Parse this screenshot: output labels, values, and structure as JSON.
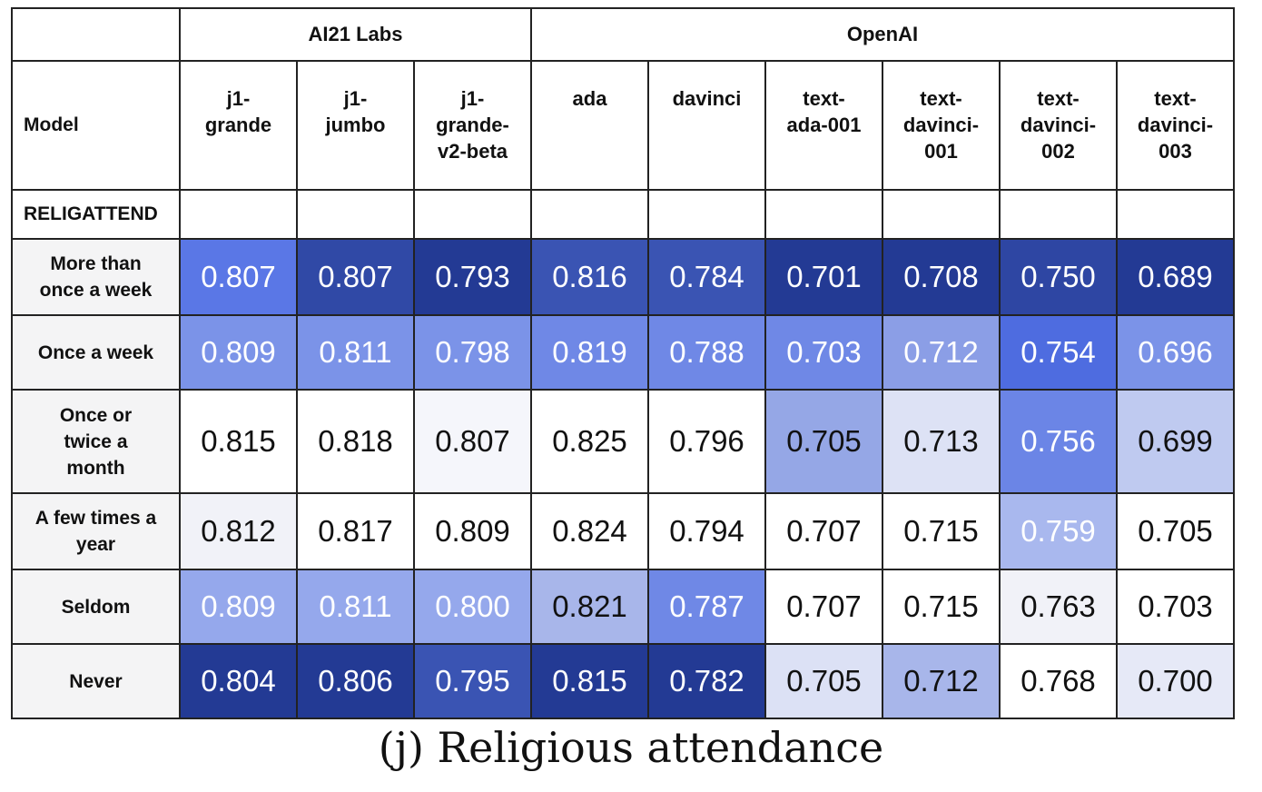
{
  "caption": "(j) Religious attendance",
  "chart_data": {
    "type": "heatmap",
    "title": "(j) Religious attendance",
    "corner_label": "Model",
    "variable_label": "RELIGATTEND",
    "groups": [
      {
        "name": "AI21 Labs",
        "span": 3
      },
      {
        "name": "OpenAI",
        "span": 6
      }
    ],
    "columns": [
      "j1-\ngrande",
      "j1-\njumbo",
      "j1-\ngrande-\nv2-beta",
      "ada",
      "davinci",
      "text-\nada-001",
      "text-\ndavinci-\n001",
      "text-\ndavinci-\n002",
      "text-\ndavinci-\n003"
    ],
    "rows": [
      "More than\nonce a week",
      "Once a week",
      "Once or\ntwice a\nmonth",
      "A few times a\nyear",
      "Seldom",
      "Never"
    ],
    "values": [
      [
        0.807,
        0.807,
        0.793,
        0.816,
        0.784,
        0.701,
        0.708,
        0.75,
        0.689
      ],
      [
        0.809,
        0.811,
        0.798,
        0.819,
        0.788,
        0.703,
        0.712,
        0.754,
        0.696
      ],
      [
        0.815,
        0.818,
        0.807,
        0.825,
        0.796,
        0.705,
        0.713,
        0.756,
        0.699
      ],
      [
        0.812,
        0.817,
        0.809,
        0.824,
        0.794,
        0.707,
        0.715,
        0.759,
        0.705
      ],
      [
        0.809,
        0.811,
        0.8,
        0.821,
        0.787,
        0.707,
        0.715,
        0.763,
        0.703
      ],
      [
        0.804,
        0.806,
        0.795,
        0.815,
        0.782,
        0.705,
        0.712,
        0.768,
        0.7
      ]
    ],
    "value_labels": [
      [
        "0.807",
        "0.807",
        "0.793",
        "0.816",
        "0.784",
        "0.701",
        "0.708",
        "0.750",
        "0.689"
      ],
      [
        "0.809",
        "0.811",
        "0.798",
        "0.819",
        "0.788",
        "0.703",
        "0.712",
        "0.754",
        "0.696"
      ],
      [
        "0.815",
        "0.818",
        "0.807",
        "0.825",
        "0.796",
        "0.705",
        "0.713",
        "0.756",
        "0.699"
      ],
      [
        "0.812",
        "0.817",
        "0.809",
        "0.824",
        "0.794",
        "0.707",
        "0.715",
        "0.759",
        "0.705"
      ],
      [
        "0.809",
        "0.811",
        "0.800",
        "0.821",
        "0.787",
        "0.707",
        "0.715",
        "0.763",
        "0.703"
      ],
      [
        "0.804",
        "0.806",
        "0.795",
        "0.815",
        "0.782",
        "0.705",
        "0.712",
        "0.768",
        "0.700"
      ]
    ],
    "cell_colors": [
      [
        "#5a77e6",
        "#3049a6",
        "#233a94",
        "#3a54b3",
        "#3a54b3",
        "#233a94",
        "#233a94",
        "#2e46a3",
        "#233a94"
      ],
      [
        "#7b93e8",
        "#7b93e8",
        "#7b93e8",
        "#6f88e6",
        "#6f88e6",
        "#6f88e6",
        "#8b9ee6",
        "#4e6ce0",
        "#7b93e8"
      ],
      [
        "#ffffff",
        "#ffffff",
        "#f5f6fb",
        "#ffffff",
        "#ffffff",
        "#95a7e6",
        "#dde2f5",
        "#6b85e6",
        "#bfcaf0"
      ],
      [
        "#f1f2f8",
        "#ffffff",
        "#ffffff",
        "#ffffff",
        "#ffffff",
        "#ffffff",
        "#ffffff",
        "#a9b8ee",
        "#ffffff"
      ],
      [
        "#95a8ec",
        "#95a8ec",
        "#95a8ec",
        "#a8b6ea",
        "#6f88e6",
        "#ffffff",
        "#ffffff",
        "#f1f2f8",
        "#ffffff"
      ],
      [
        "#233a94",
        "#233a94",
        "#3a54b3",
        "#233a94",
        "#233a94",
        "#dce1f5",
        "#a8b6ea",
        "#ffffff",
        "#e6e9f7"
      ]
    ],
    "text_colors": [
      [
        "#ffffff",
        "#ffffff",
        "#ffffff",
        "#ffffff",
        "#ffffff",
        "#ffffff",
        "#ffffff",
        "#ffffff",
        "#ffffff"
      ],
      [
        "#ffffff",
        "#ffffff",
        "#ffffff",
        "#ffffff",
        "#ffffff",
        "#ffffff",
        "#ffffff",
        "#ffffff",
        "#ffffff"
      ],
      [
        "#111111",
        "#111111",
        "#111111",
        "#111111",
        "#111111",
        "#111111",
        "#111111",
        "#ffffff",
        "#111111"
      ],
      [
        "#111111",
        "#111111",
        "#111111",
        "#111111",
        "#111111",
        "#111111",
        "#111111",
        "#ffffff",
        "#111111"
      ],
      [
        "#ffffff",
        "#ffffff",
        "#ffffff",
        "#111111",
        "#ffffff",
        "#111111",
        "#111111",
        "#111111",
        "#111111"
      ],
      [
        "#ffffff",
        "#ffffff",
        "#ffffff",
        "#ffffff",
        "#ffffff",
        "#111111",
        "#111111",
        "#111111",
        "#111111"
      ]
    ]
  }
}
